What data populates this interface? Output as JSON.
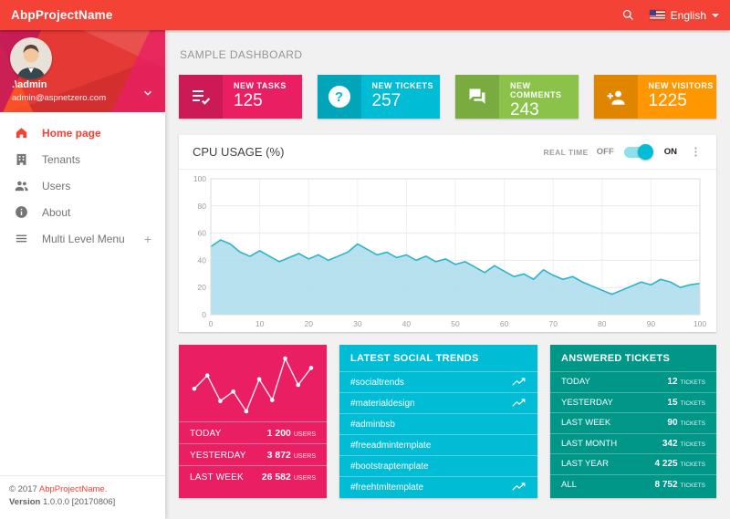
{
  "colors": {
    "red": "#f44336",
    "pink": "#e91e63",
    "cyan": "#00bcd4",
    "green": "#8bc34a",
    "orange": "#ff9800",
    "teal": "#009688"
  },
  "topbar": {
    "title": "AbpProjectName",
    "language": "English"
  },
  "sidebar": {
    "user": {
      "name": ".\\admin",
      "email": "admin@aspnetzero.com"
    },
    "menu": [
      {
        "label": "Home page",
        "active": true
      },
      {
        "label": "Tenants",
        "active": false
      },
      {
        "label": "Users",
        "active": false
      },
      {
        "label": "About",
        "active": false
      },
      {
        "label": "Multi Level Menu",
        "active": false,
        "expand": "+"
      }
    ],
    "legal": {
      "copyright_prefix": "© 2017 ",
      "brand": "AbpProjectName",
      "copyright_suffix": ".",
      "version_label": "Version",
      "version_value": " 1.0.0.0 [20170806]"
    }
  },
  "main": {
    "heading": "SAMPLE DASHBOARD",
    "stat_cards": [
      {
        "label": "NEW TASKS",
        "value": "125",
        "icon": "tasks-icon",
        "color": "#e91e63"
      },
      {
        "label": "NEW TICKETS",
        "value": "257",
        "icon": "help-icon",
        "color": "#00bcd4"
      },
      {
        "label": "NEW COMMENTS",
        "value": "243",
        "icon": "comments-icon",
        "color": "#8bc34a"
      },
      {
        "label": "NEW VISITORS",
        "value": "1225",
        "icon": "person-add-icon",
        "color": "#ff9800"
      }
    ],
    "cpu_panel": {
      "title": "CPU USAGE (%)",
      "realtime_label": "REAL TIME",
      "off_label": "OFF",
      "on_label": "ON",
      "toggle_state": "on",
      "chart_data": {
        "type": "area",
        "title": "CPU USAGE (%)",
        "xlim": [
          0,
          100
        ],
        "ylim": [
          0,
          100
        ],
        "x_ticks": [
          0,
          10,
          20,
          30,
          40,
          50,
          60,
          70,
          80,
          90,
          100
        ],
        "y_ticks": [
          0,
          20,
          40,
          60,
          80,
          100
        ],
        "grid": true,
        "line_color": "#2cb3cc",
        "fill_color": "#aadcec",
        "x": [
          0,
          2,
          4,
          6,
          8,
          10,
          12,
          14,
          16,
          18,
          20,
          22,
          24,
          26,
          28,
          30,
          32,
          34,
          36,
          38,
          40,
          42,
          44,
          46,
          48,
          50,
          52,
          54,
          56,
          58,
          60,
          62,
          64,
          66,
          68,
          70,
          72,
          74,
          76,
          78,
          80,
          82,
          84,
          86,
          88,
          90,
          92,
          94,
          96,
          98,
          100
        ],
        "y": [
          50,
          55,
          52,
          46,
          43,
          47,
          43,
          39,
          42,
          45,
          41,
          44,
          40,
          43,
          46,
          52,
          48,
          44,
          46,
          42,
          44,
          40,
          43,
          39,
          41,
          37,
          39,
          35,
          31,
          36,
          32,
          28,
          30,
          26,
          33,
          29,
          26,
          28,
          24,
          21,
          18,
          15,
          18,
          21,
          24,
          22,
          26,
          24,
          20,
          22,
          23
        ]
      }
    },
    "visitors_card": {
      "color": "#e91e63",
      "chart_data": {
        "type": "line",
        "values": [
          58,
          72,
          45,
          55,
          34,
          68,
          46,
          90,
          62,
          80
        ]
      },
      "rows": [
        {
          "label": "TODAY",
          "value": "1 200",
          "unit": "USERS"
        },
        {
          "label": "YESTERDAY",
          "value": "3 872",
          "unit": "USERS"
        },
        {
          "label": "LAST WEEK",
          "value": "26 582",
          "unit": "USERS"
        }
      ]
    },
    "social_card": {
      "title": "LATEST SOCIAL TRENDS",
      "color": "#00bcd4",
      "items": [
        {
          "label": "#socialtrends",
          "trend": true
        },
        {
          "label": "#materialdesign",
          "trend": true
        },
        {
          "label": "#adminbsb",
          "trend": false
        },
        {
          "label": "#freeadmintemplate",
          "trend": false
        },
        {
          "label": "#bootstraptemplate",
          "trend": false
        },
        {
          "label": "#freehtmltemplate",
          "trend": true
        }
      ]
    },
    "tickets_card": {
      "title": "ANSWERED TICKETS",
      "color": "#009688",
      "rows": [
        {
          "label": "TODAY",
          "value": "12",
          "unit": "TICKETS"
        },
        {
          "label": "YESTERDAY",
          "value": "15",
          "unit": "TICKETS"
        },
        {
          "label": "LAST WEEK",
          "value": "90",
          "unit": "TICKETS"
        },
        {
          "label": "LAST MONTH",
          "value": "342",
          "unit": "TICKETS"
        },
        {
          "label": "LAST YEAR",
          "value": "4 225",
          "unit": "TICKETS"
        },
        {
          "label": "ALL",
          "value": "8 752",
          "unit": "TICKETS"
        }
      ]
    }
  }
}
